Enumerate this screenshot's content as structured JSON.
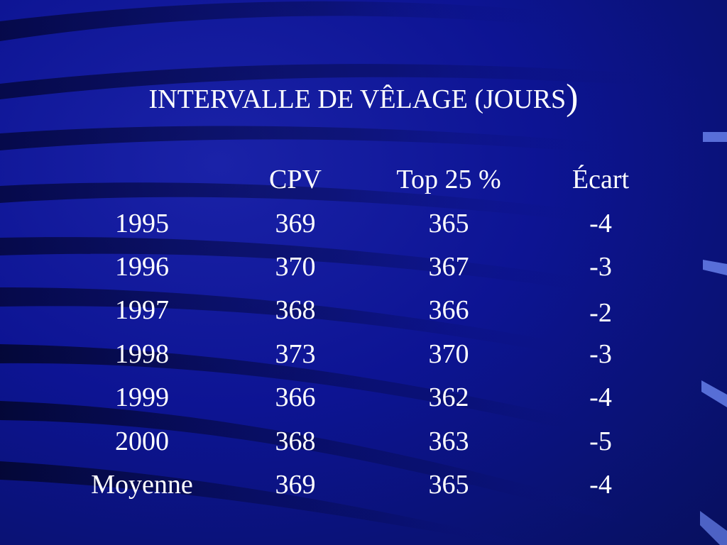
{
  "slide": {
    "title_main": "INTERVALLE DE VÊLAGE (JOURS",
    "title_close": ")",
    "headers": {
      "label": "",
      "cpv": "CPV",
      "top": "Top 25 %",
      "ecart": "Écart"
    },
    "rows": [
      {
        "label": "1995",
        "cpv": "369",
        "top": "365",
        "ecart": "-4"
      },
      {
        "label": "1996",
        "cpv": "370",
        "top": "367",
        "ecart": "-3"
      },
      {
        "label": "1997",
        "cpv": "368",
        "top": "366",
        "ecart": "-2"
      },
      {
        "label": "1998",
        "cpv": "373",
        "top": "370",
        "ecart": "-3"
      },
      {
        "label": "1999",
        "cpv": "366",
        "top": "362",
        "ecart": "-4"
      },
      {
        "label": "2000",
        "cpv": "368",
        "top": "363",
        "ecart": "-5"
      },
      {
        "label": "Moyenne",
        "cpv": "369",
        "top": "365",
        "ecart": "-4"
      }
    ],
    "colors": {
      "background": "#0d1493",
      "text": "#ffffff",
      "accent": "#5a78e8"
    }
  }
}
